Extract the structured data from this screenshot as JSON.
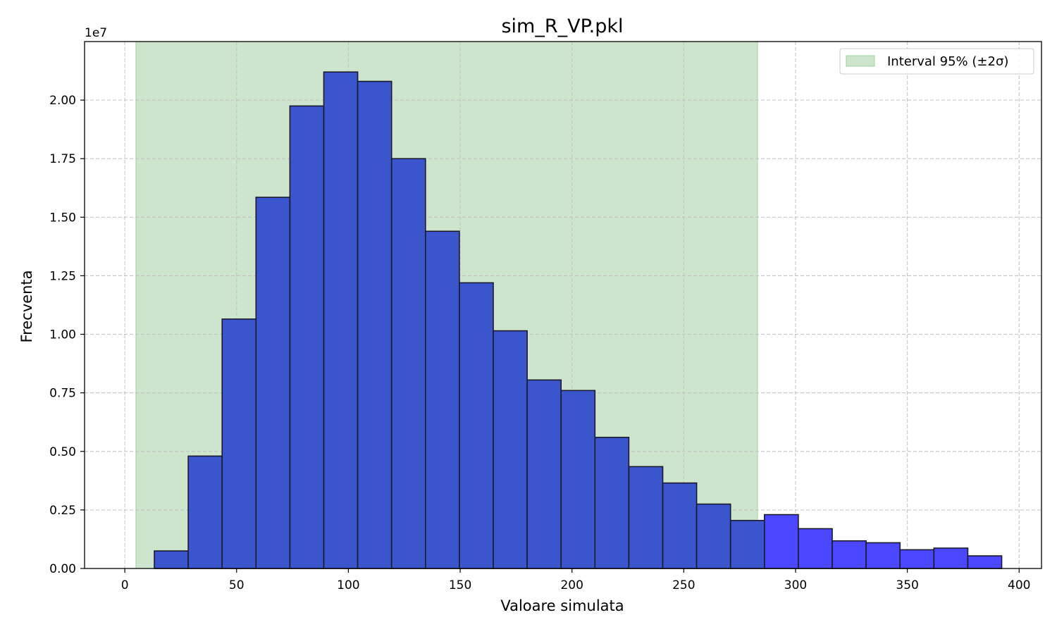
{
  "chart_data": {
    "type": "bar",
    "title": "sim_R_VP.pkl",
    "xlabel": "Valoare simulata",
    "ylabel": "Frecventa",
    "y_offset_text": "1e7",
    "y_scale": 10000000,
    "xlim": [
      -18,
      410
    ],
    "ylim": [
      0,
      2.25
    ],
    "x_ticks": [
      0,
      50,
      100,
      150,
      200,
      250,
      300,
      350,
      400
    ],
    "y_ticks": [
      0.0,
      0.25,
      0.5,
      0.75,
      1.0,
      1.25,
      1.5,
      1.75,
      2.0
    ],
    "y_tick_labels": [
      "0.00",
      "0.25",
      "0.50",
      "0.75",
      "1.00",
      "1.25",
      "1.50",
      "1.75",
      "2.00"
    ],
    "grid": true,
    "legend_position": "top-right",
    "bin_width": 15.16,
    "bins_start": [
      13.2,
      28.36,
      43.52,
      58.68,
      73.84,
      89.0,
      104.16,
      119.32,
      134.48,
      149.64,
      164.8,
      179.96,
      195.12,
      210.28,
      225.44,
      240.6,
      255.76,
      270.92,
      286.08,
      301.24,
      316.4,
      331.56,
      346.72,
      361.88,
      377.04
    ],
    "values": [
      0.075,
      0.48,
      1.065,
      1.585,
      1.975,
      2.12,
      2.08,
      1.75,
      1.44,
      1.22,
      1.015,
      0.805,
      0.76,
      0.56,
      0.435,
      0.365,
      0.275,
      0.205,
      0.23,
      0.17,
      0.118,
      0.11,
      0.08,
      0.087,
      0.054
    ],
    "interval": {
      "label": "Interval 95% (±2σ)",
      "x_start": 5,
      "x_end": 283
    },
    "colors": {
      "bar_inside": "#3b55cc",
      "bar_outside": "#4b47ff",
      "bar_edge": "#1a1a2e",
      "interval_fill": "#cde5cd",
      "interval_edge": "#9fd09f",
      "grid": "#c4c4c4"
    }
  }
}
